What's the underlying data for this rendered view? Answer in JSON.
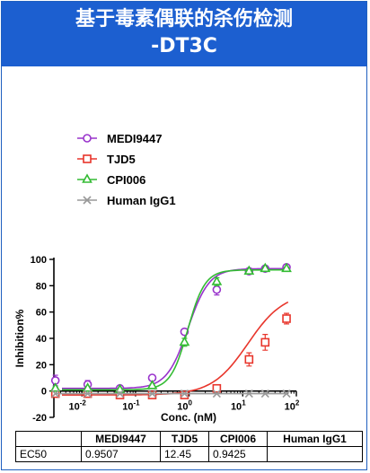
{
  "header": {
    "title_line1": "基于毒素偶联的杀伤检测",
    "title_line2": "-DT3C",
    "bg_color": "#1c5fd0"
  },
  "chart_data": {
    "type": "line",
    "xlabel": "Conc. (nM)",
    "ylabel": "Inhibition%",
    "x_scale": "log",
    "xlim": [
      0.003,
      100
    ],
    "ylim": [
      -20,
      100
    ],
    "yticks": [
      -20,
      0,
      20,
      40,
      60,
      80,
      100
    ],
    "xticks": [
      {
        "value": 0.01,
        "base": "10",
        "exp": "-2"
      },
      {
        "value": 0.1,
        "base": "10",
        "exp": "-1"
      },
      {
        "value": 1,
        "base": "10",
        "exp": "0"
      },
      {
        "value": 10,
        "base": "10",
        "exp": "1"
      },
      {
        "value": 100,
        "base": "10",
        "exp": "2"
      }
    ],
    "legend_position": "top-left",
    "grid": false,
    "series": [
      {
        "name": "MEDI9447",
        "color": "#9933cc",
        "marker": "circle",
        "points": [
          {
            "x": 0.0032,
            "y": 8,
            "err": 4
          },
          {
            "x": 0.0128,
            "y": 5,
            "err": 3
          },
          {
            "x": 0.0512,
            "y": 2,
            "err": 2
          },
          {
            "x": 0.2048,
            "y": 10,
            "err": 2
          },
          {
            "x": 0.8192,
            "y": 45,
            "err": 2
          },
          {
            "x": 3.2768,
            "y": 77,
            "err": 4
          },
          {
            "x": 13.1072,
            "y": 91,
            "err": 1
          },
          {
            "x": 26.2144,
            "y": 93,
            "err": 1
          },
          {
            "x": 65.536,
            "y": 94,
            "err": 1
          }
        ],
        "fit": {
          "bottom": 2,
          "top": 93,
          "ec50": 0.9507,
          "hill": 2.2
        }
      },
      {
        "name": "TJD5",
        "color": "#e8352b",
        "marker": "square",
        "points": [
          {
            "x": 0.0032,
            "y": -2,
            "err": 2
          },
          {
            "x": 0.0128,
            "y": -2,
            "err": 1
          },
          {
            "x": 0.0512,
            "y": -3,
            "err": 1
          },
          {
            "x": 0.2048,
            "y": -3,
            "err": 1
          },
          {
            "x": 0.8192,
            "y": -3,
            "err": 1
          },
          {
            "x": 3.2768,
            "y": 2,
            "err": 2
          },
          {
            "x": 13.1072,
            "y": 24,
            "err": 5
          },
          {
            "x": 26.2144,
            "y": 37,
            "err": 6
          },
          {
            "x": 65.536,
            "y": 55,
            "err": 4
          }
        ],
        "fit": {
          "bottom": -3,
          "top": 75,
          "ec50": 12.45,
          "hill": 1.3
        }
      },
      {
        "name": "CPI006",
        "color": "#33bb33",
        "marker": "triangle",
        "points": [
          {
            "x": 0.0032,
            "y": 2,
            "err": 1
          },
          {
            "x": 0.0128,
            "y": 2,
            "err": 1
          },
          {
            "x": 0.0512,
            "y": 1,
            "err": 1
          },
          {
            "x": 0.2048,
            "y": 4,
            "err": 1
          },
          {
            "x": 0.8192,
            "y": 37,
            "err": 3
          },
          {
            "x": 3.2768,
            "y": 83,
            "err": 3
          },
          {
            "x": 13.1072,
            "y": 91,
            "err": 1
          },
          {
            "x": 26.2144,
            "y": 93,
            "err": 1
          },
          {
            "x": 65.536,
            "y": 93,
            "err": 1
          }
        ],
        "fit": {
          "bottom": 1,
          "top": 92,
          "ec50": 0.9425,
          "hill": 2.7
        }
      },
      {
        "name": "Human IgG1",
        "color": "#999999",
        "marker": "cross",
        "points": [
          {
            "x": 0.0032,
            "y": -2,
            "err": 0
          },
          {
            "x": 0.0128,
            "y": -2,
            "err": 0
          },
          {
            "x": 0.0512,
            "y": -2,
            "err": 0
          },
          {
            "x": 0.2048,
            "y": -2,
            "err": 0
          },
          {
            "x": 0.8192,
            "y": -2,
            "err": 0
          },
          {
            "x": 3.2768,
            "y": -2,
            "err": 0
          },
          {
            "x": 13.1072,
            "y": -2,
            "err": 0
          },
          {
            "x": 26.2144,
            "y": -2,
            "err": 0
          },
          {
            "x": 65.536,
            "y": -2,
            "err": 0
          }
        ],
        "fit": null
      }
    ]
  },
  "ec50_table": {
    "row_label": "EC50",
    "columns": [
      "MEDI9447",
      "TJD5",
      "CPI006",
      "Human IgG1"
    ],
    "values": [
      "0.9507",
      "12.45",
      "0.9425",
      ""
    ]
  }
}
